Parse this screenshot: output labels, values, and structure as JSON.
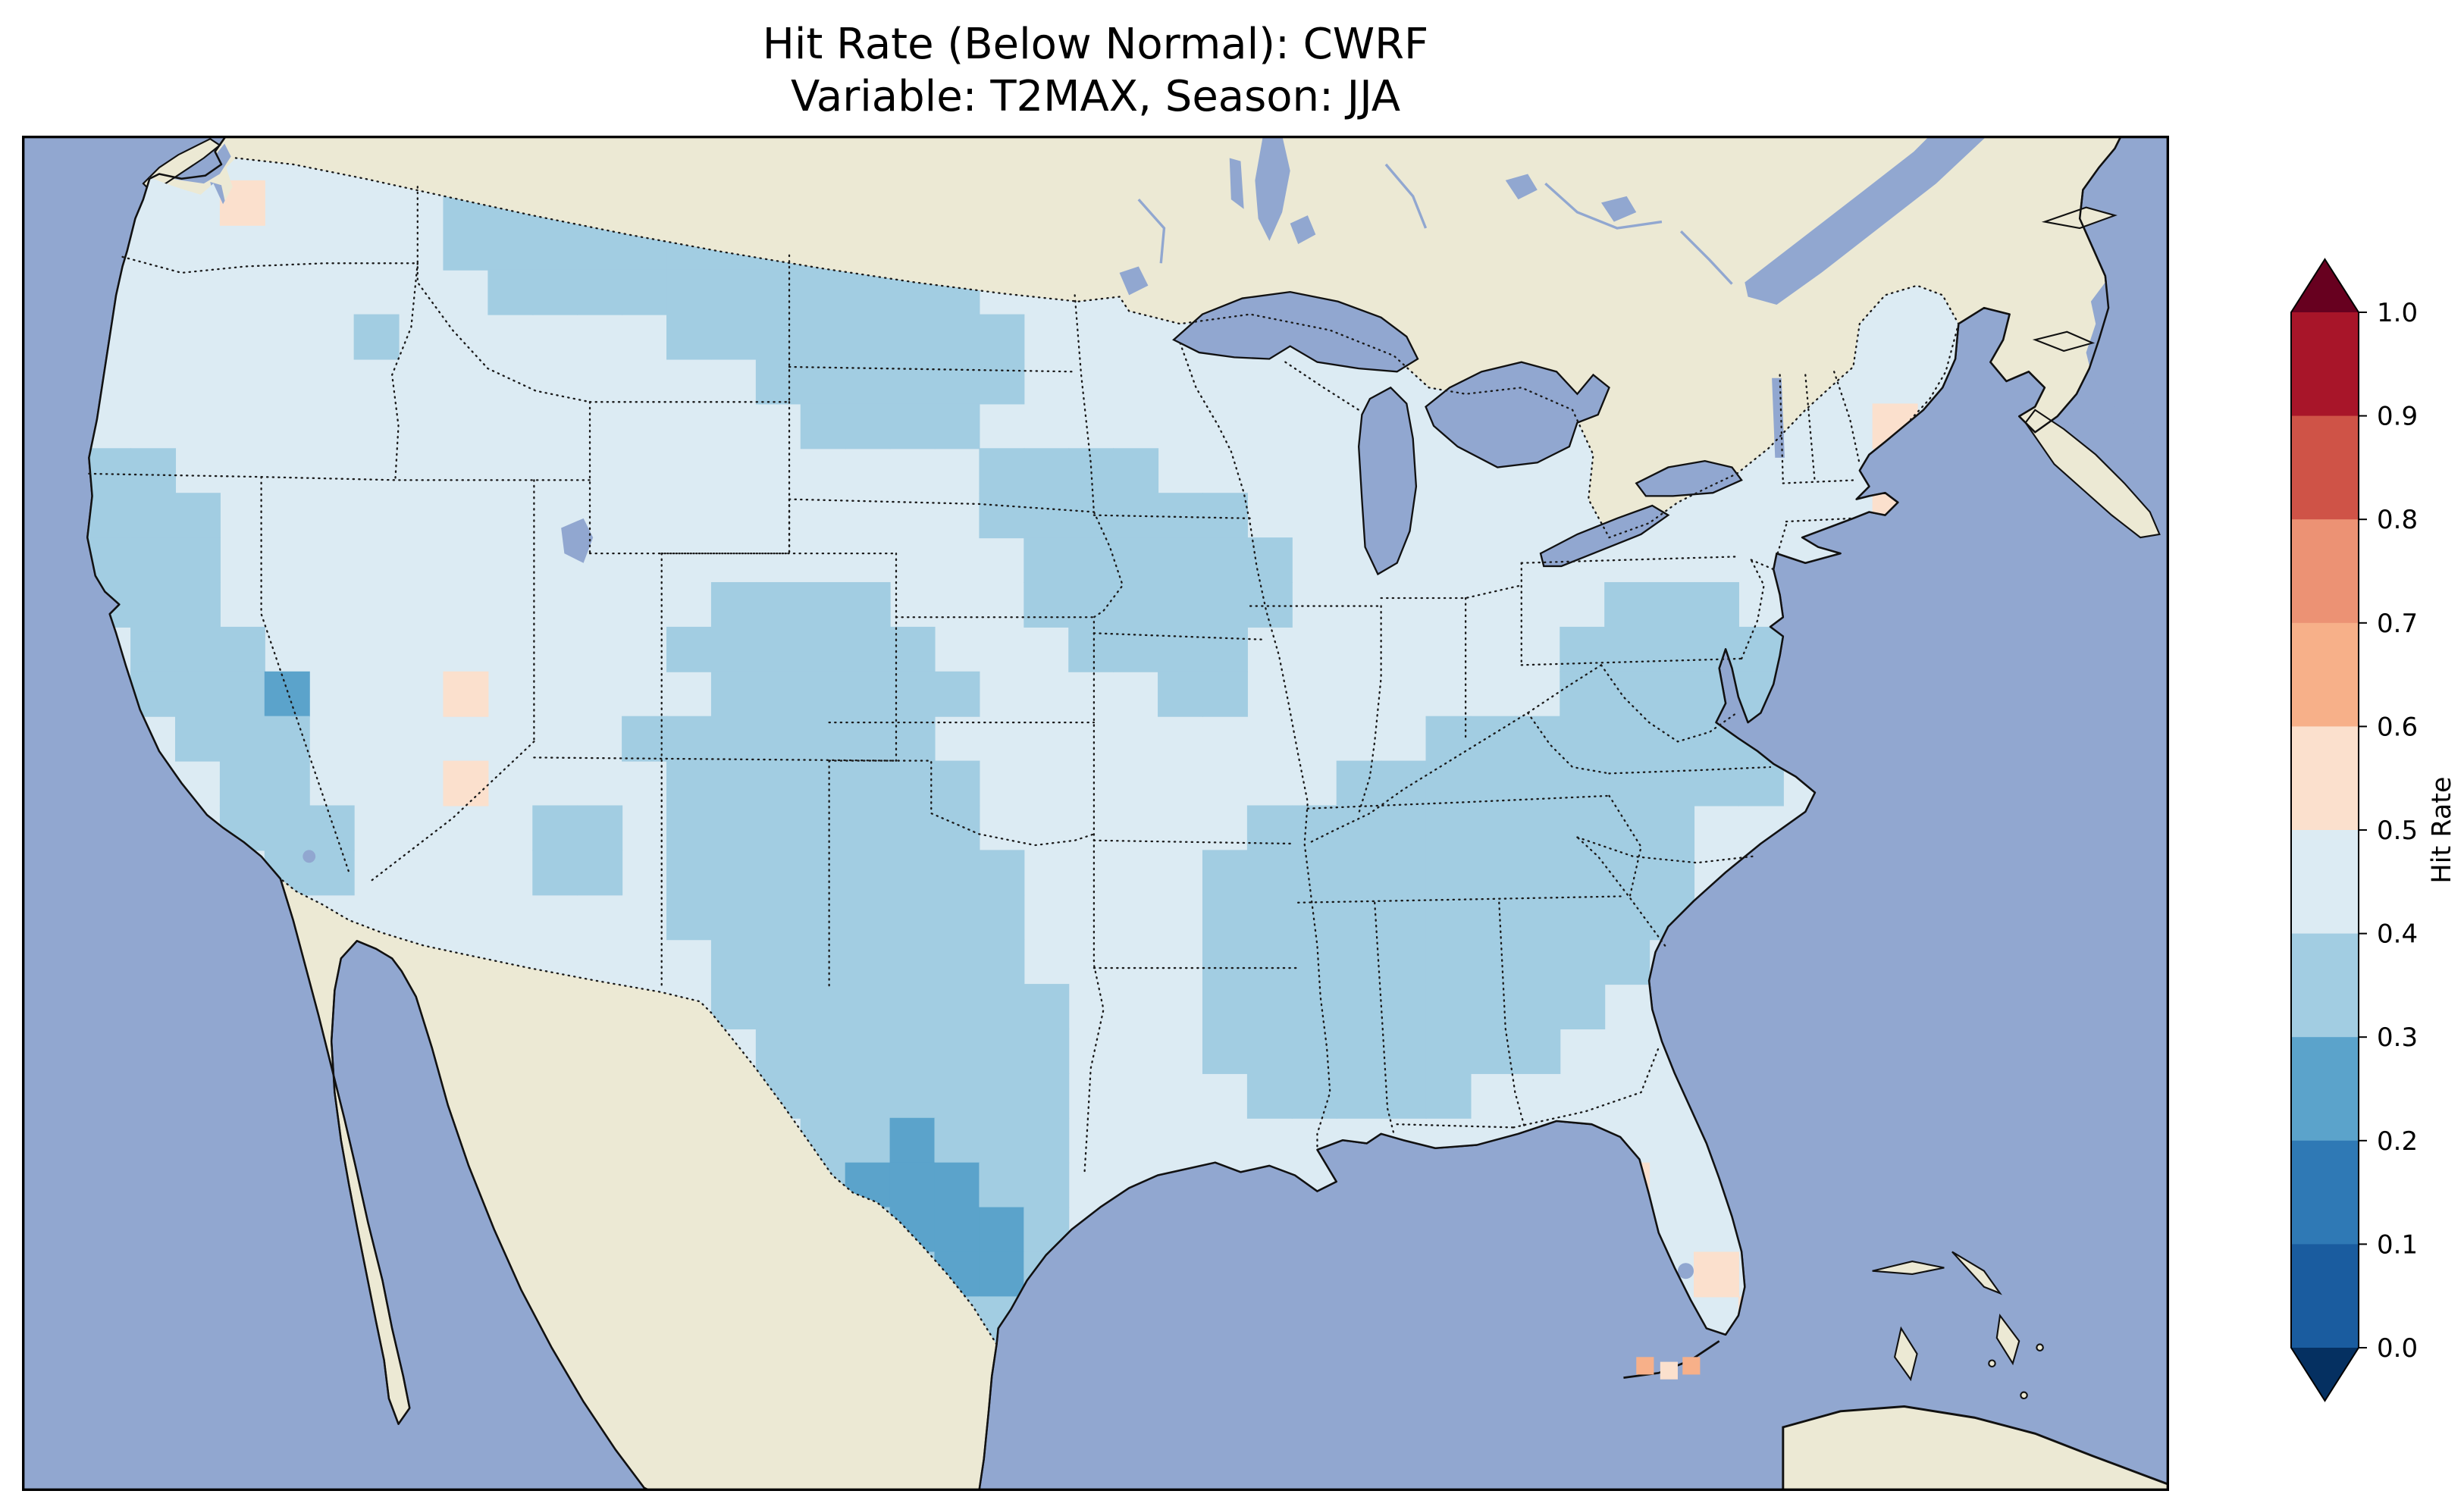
{
  "figure": {
    "title_line1": "Hit Rate (Below Normal): CWRF",
    "title_line2": "Variable: T2MAX, Season: JJA"
  },
  "chart_data": {
    "type": "heatmap",
    "subtype": "geographic-gridded-map",
    "title": "Hit Rate (Below Normal): CWRF",
    "subtitle": "Variable: T2MAX, Season: JJA",
    "metric": "Hit Rate",
    "forecast_category": "Below Normal",
    "model": "CWRF",
    "variable": "T2MAX",
    "season": "JJA",
    "region": "Contiguous United States",
    "colorbar": {
      "label": "Hit Rate",
      "range": [
        0.0,
        1.0
      ],
      "bin_edges": [
        0.0,
        0.1,
        0.2,
        0.3,
        0.4,
        0.5,
        0.6,
        0.7,
        0.8,
        0.9,
        1.0
      ],
      "extend": "both",
      "ticks": [
        "1.0",
        "0.9",
        "0.8",
        "0.7",
        "0.6",
        "0.5",
        "0.4",
        "0.3",
        "0.2",
        "0.1",
        "0.0"
      ],
      "colors_low_to_high": [
        "#053061",
        "#1a5c9f",
        "#2f79b5",
        "#5ba3cb",
        "#a2cde2",
        "#dcebf3",
        "#fbe0cd",
        "#f7b089",
        "#ec9274",
        "#cf5347",
        "#a81529",
        "#67001f"
      ]
    },
    "map_colors": {
      "ocean": "#91a7d0",
      "land": "#ece9d4",
      "coastline": "#111111",
      "border_dots": "#1a1a1a"
    },
    "grid": {
      "bin_key": {
        "3": "0.2-0.3",
        "4": "0.3-0.4",
        "5": "0.4-0.5",
        "6": "0.5-0.6",
        "7": "0.6-0.7"
      },
      "rows_data": [
        "5555555555555555555555555555555555555555555",
        "5556555544444455555555555555555555555555555",
        "5555555544444444444555555555555555555555555",
        "5555555554444444444455555555555555555555555",
        "5555554555555444444445555555555555555555555",
        "5555555555555554444445555555555555555555555",
        "5555555555555555444455555555555555555555655",
        "4455555555555555555544445555555555555555555",
        "4445555555555555555544444455555555555555655",
        "4445555555555555555554444445555555555555555",
        "4445555555555544445554444445555555444555555",
        "5444555555555444444555444455555554444455555",
        "5444355565555544444455554455555554444445555",
        "5544455555554444444555555555554444444455555",
        "5554455565555444444455555555444444444455555",
        "5554445555445444444455555544444444445555555",
        "5555445555445444444445555444444444445555555",
        "5555555555555444444445555444444444445555555",
        "5555555555555544444445555444444444455555555",
        "5555555555555544444444555444444444555555555",
        "5555555555555554444444555444444445555555555",
        "5555555555555554444444555544444555555555555",
        "5555555555555555443444555555555555555555555",
        "5555555555555555433344555555555555655555555",
        "5555555555555555543334555555555555655555555",
        "5555555555555555554334555555555555556555555",
        "5555555555555555555445555555555555555665555",
        "5555555555555555555545555555555555567755555"
      ],
      "florida_keys_offshore_cell_bins": [
        7,
        6,
        7
      ]
    }
  }
}
